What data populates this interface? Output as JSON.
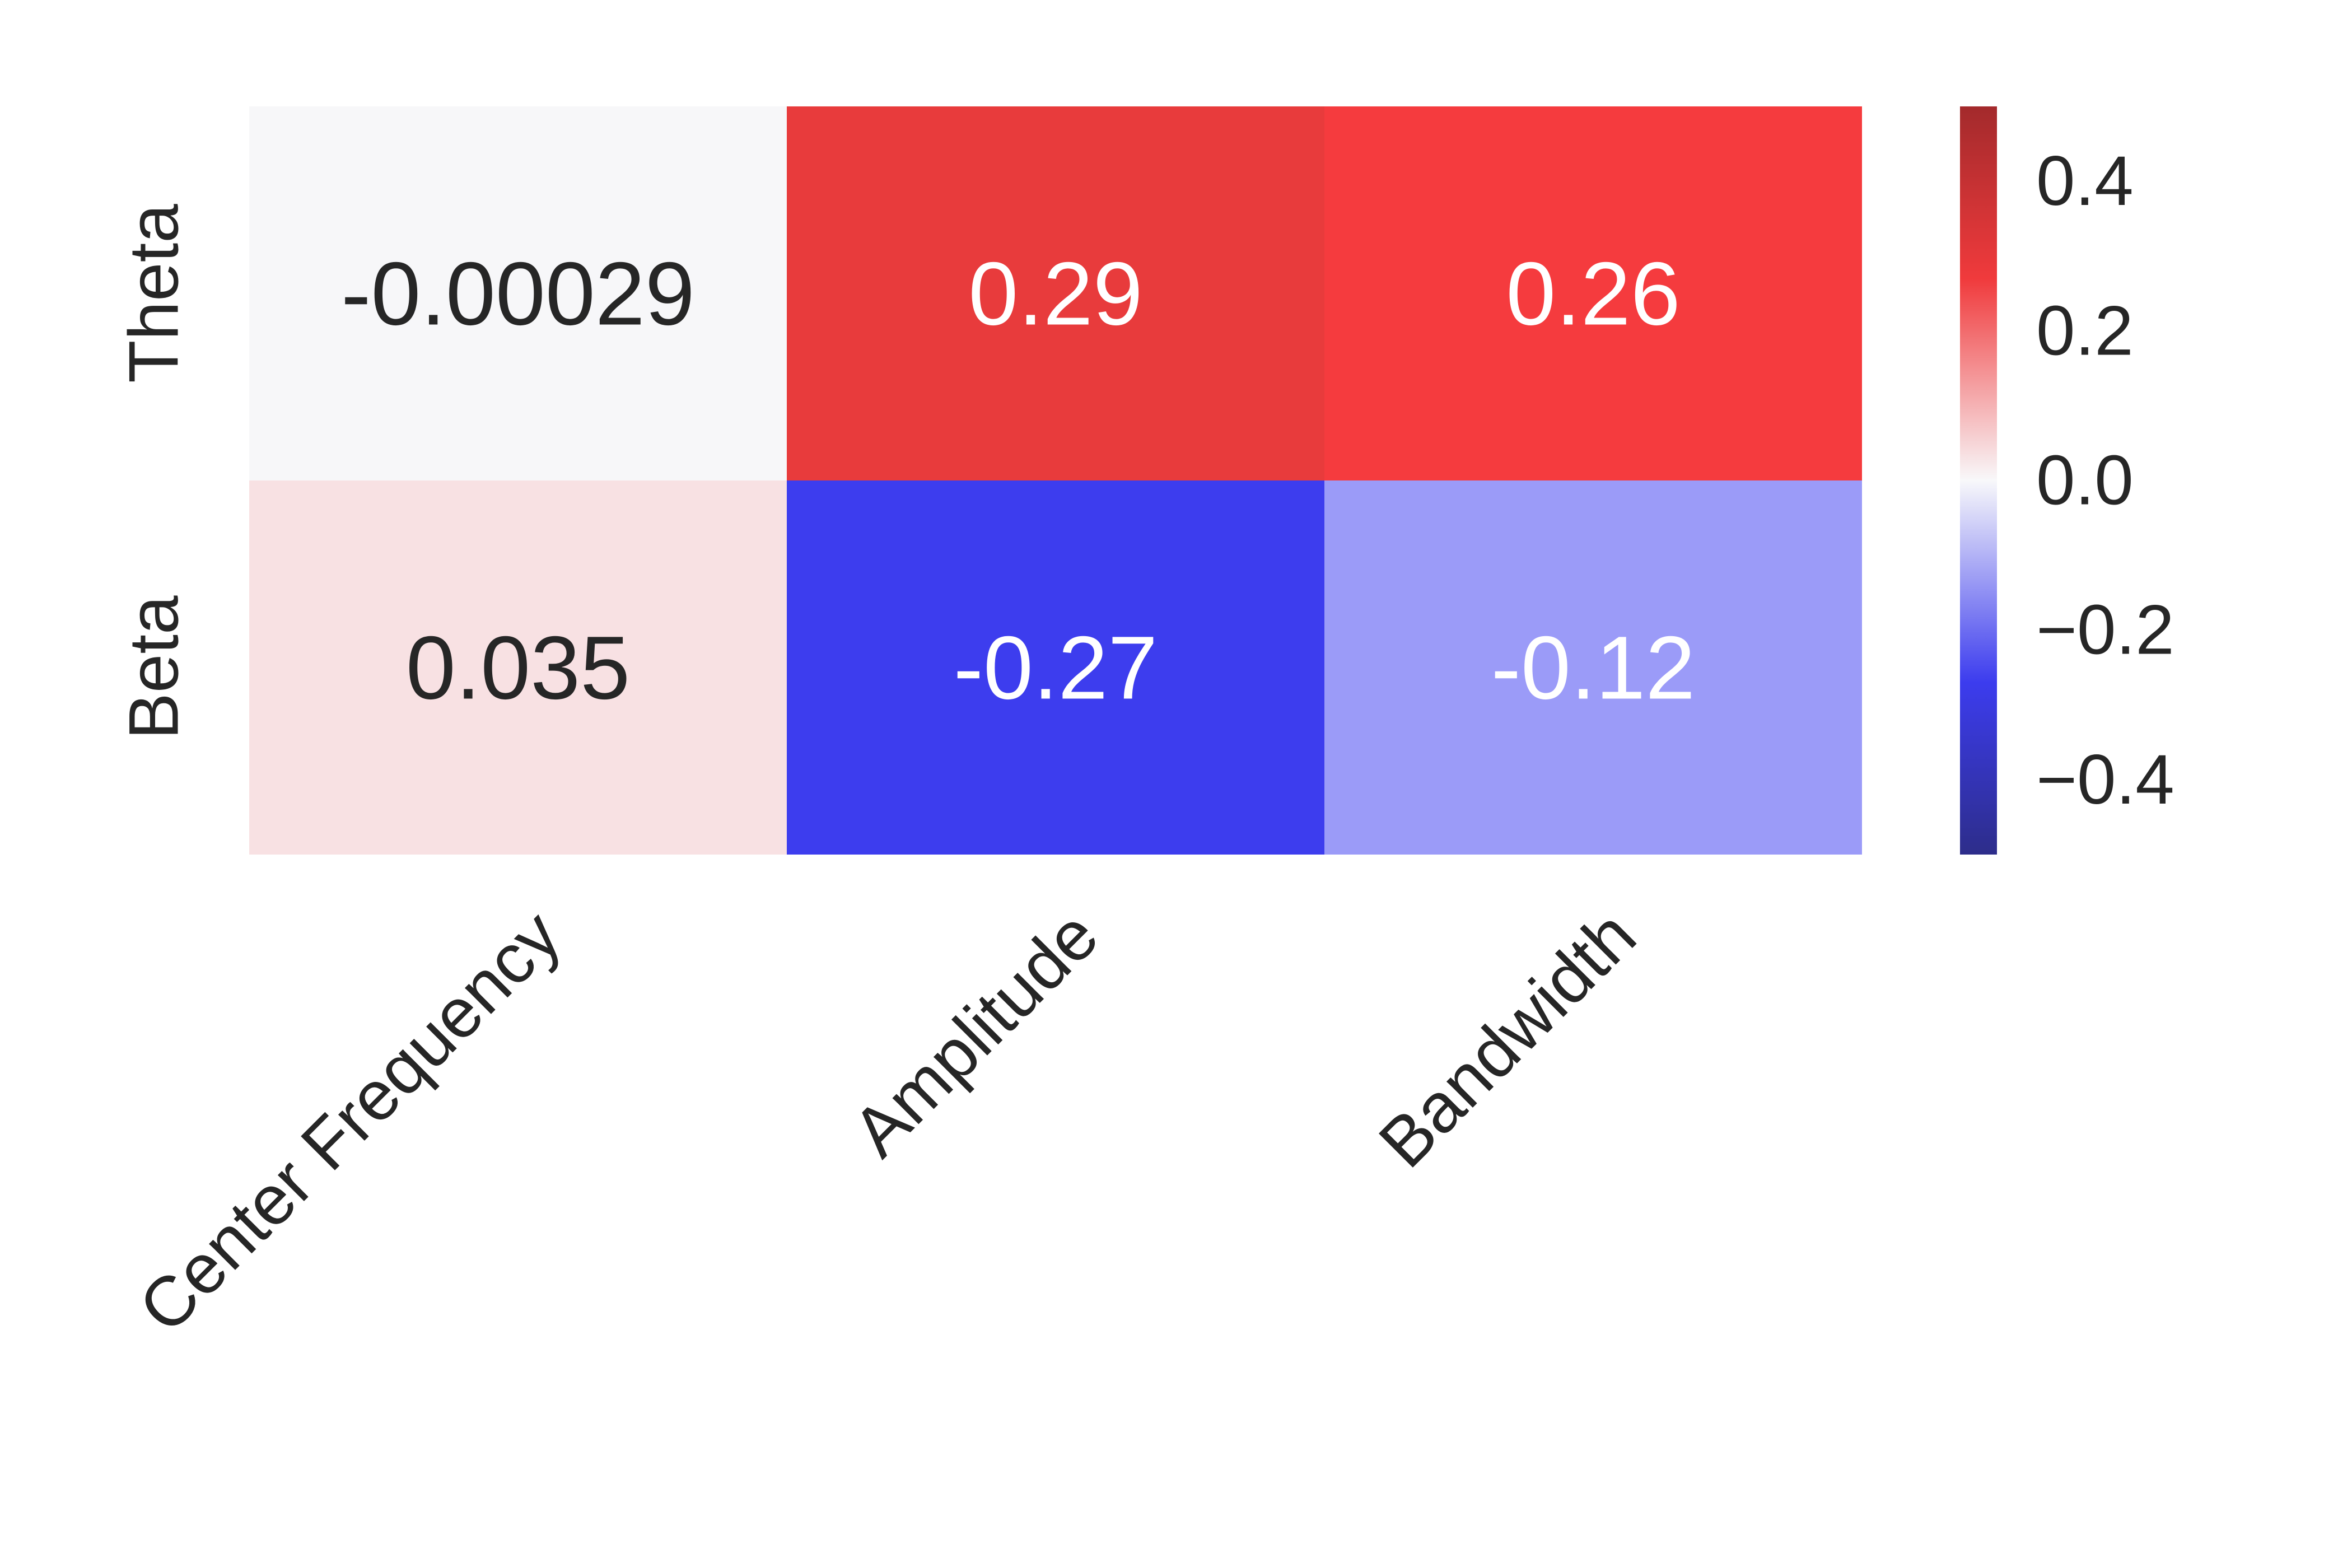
{
  "chart_data": {
    "type": "heatmap",
    "title": "",
    "xlabel": "",
    "ylabel": "",
    "x_categories": [
      "Center Frequency",
      "Amplitude",
      "Bandwidth"
    ],
    "y_categories": [
      "Theta",
      "Beta"
    ],
    "values": [
      [
        -0.00029,
        0.29,
        0.26
      ],
      [
        0.035,
        -0.27,
        -0.12
      ]
    ],
    "annotations": [
      [
        "-0.00029",
        "0.29",
        "0.26"
      ],
      [
        "0.035",
        "-0.27",
        "-0.12"
      ]
    ],
    "colorbar": {
      "vmin": -0.5,
      "vmax": 0.5,
      "ticks": [
        0.4,
        0.2,
        0.0,
        -0.2,
        -0.4
      ],
      "tick_labels": [
        "0.4",
        "0.2",
        "0.0",
        "−0.2",
        "−0.4"
      ],
      "placement": "right"
    },
    "colormap": {
      "name": "seismic",
      "stops": [
        {
          "value": -0.5,
          "color": "#2d2d8a"
        },
        {
          "value": -0.27,
          "color": "#3c3cee"
        },
        {
          "value": 0.0,
          "color": "#f8f8fa"
        },
        {
          "value": 0.27,
          "color": "#f03a3c"
        },
        {
          "value": 0.5,
          "color": "#a32a2c"
        }
      ]
    },
    "cell_colors": [
      [
        "#f7f7f9",
        "#e83b3c",
        "#f53b3e"
      ],
      [
        "#f8e1e3",
        "#3d3dee",
        "#9b9bf8"
      ]
    ],
    "annotation_colors": {
      "dark": "#262626",
      "light": "#ffffff"
    },
    "tick_label_color": "#262626"
  }
}
